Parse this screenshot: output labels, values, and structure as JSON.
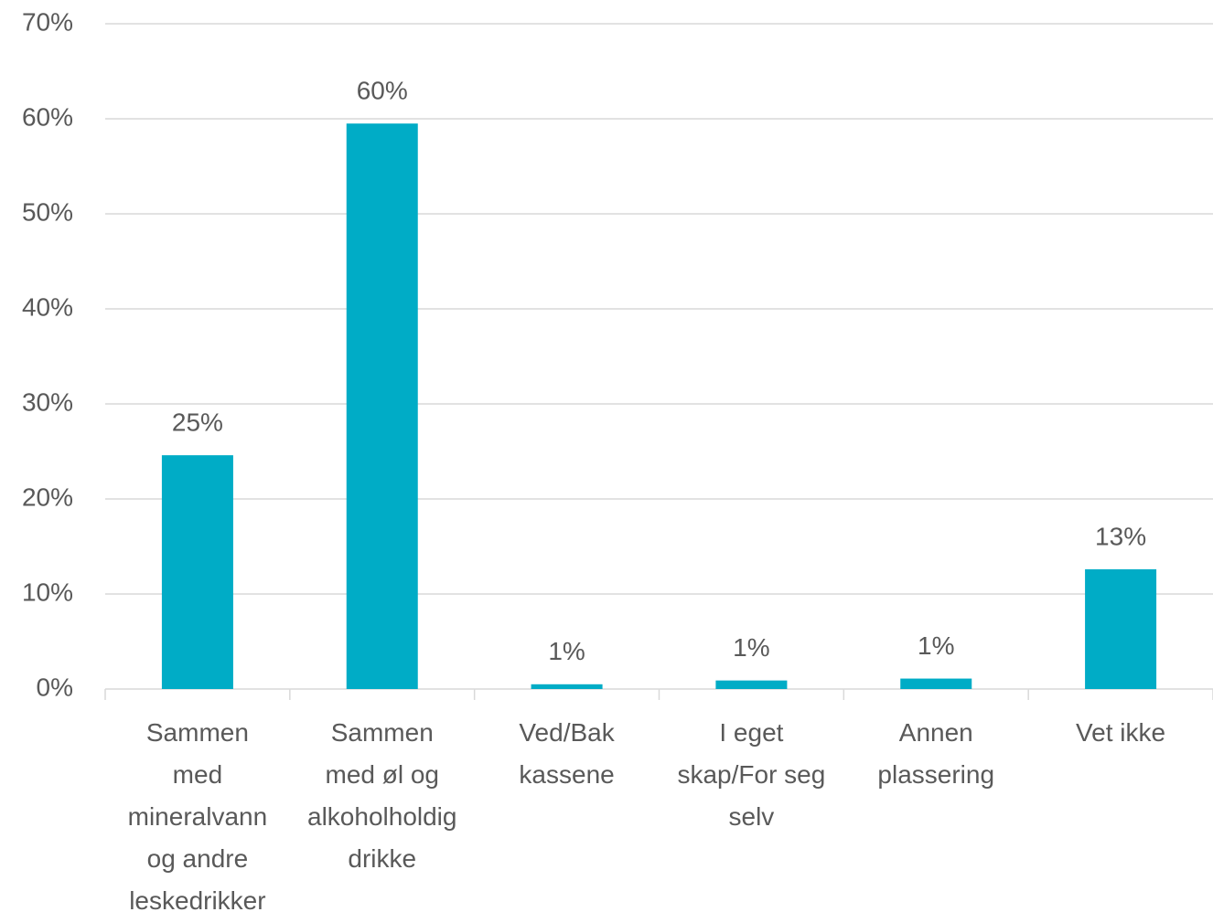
{
  "chart_data": {
    "type": "bar",
    "categories": [
      "Sammen\nmed\nmineralvann\nog andre\nleskedrikker",
      "Sammen\nmed øl og\nalkoholholdig\ndrikke",
      "Ved/Bak\nkassene",
      "I eget\nskap/For seg\nselv",
      "Annen\nplassering",
      "Vet ikke"
    ],
    "values": [
      24.6,
      59.5,
      0.5,
      0.9,
      1.1,
      12.6
    ],
    "value_labels": [
      "25%",
      "60%",
      "1%",
      "1%",
      "1%",
      "13%"
    ],
    "color": "#00acc6",
    "ylim": [
      0,
      70
    ],
    "yticks": [
      {
        "value": 0,
        "label": "0%"
      },
      {
        "value": 10,
        "label": "10%"
      },
      {
        "value": 20,
        "label": "20%"
      },
      {
        "value": 30,
        "label": "30%"
      },
      {
        "value": 40,
        "label": "40%"
      },
      {
        "value": 50,
        "label": "50%"
      },
      {
        "value": 60,
        "label": "60%"
      },
      {
        "value": 70,
        "label": "70%"
      }
    ],
    "grid": true
  }
}
